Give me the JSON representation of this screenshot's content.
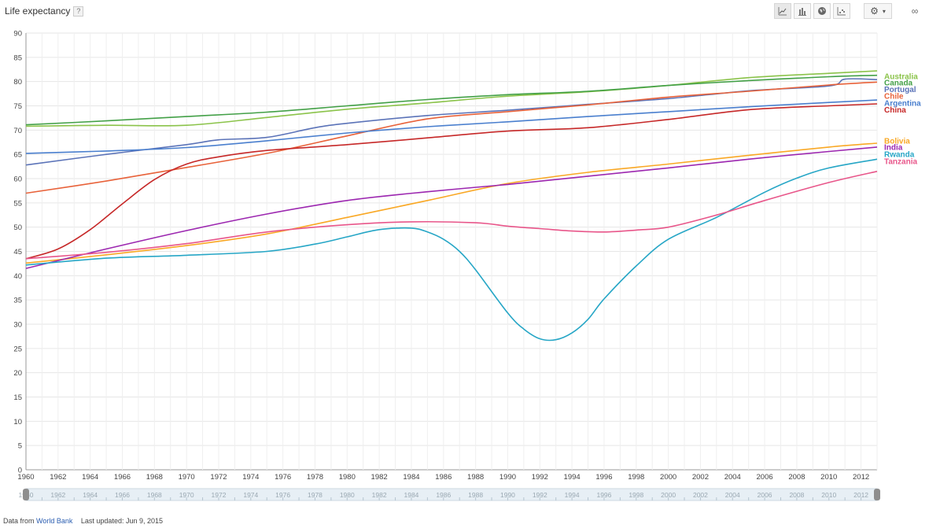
{
  "header": {
    "title": "Life expectancy",
    "help": "?",
    "toolbar": {
      "line_icon": "line-chart-icon",
      "bar_icon": "bar-chart-icon",
      "map_icon": "globe-icon",
      "scatter_icon": "scatter-chart-icon",
      "settings_icon": "gear-icon",
      "settings_caret": "▾",
      "link_icon": "chain-link-icon"
    }
  },
  "footer": {
    "source_prefix": "Data from",
    "source_link": "World Bank",
    "updated": "Last updated: Jun 9, 2015"
  },
  "chart_data": {
    "type": "line",
    "title": "Life expectancy",
    "xlabel": "",
    "ylabel": "",
    "xlim": [
      1960,
      2013
    ],
    "ylim": [
      0,
      90
    ],
    "x_ticks": [
      1960,
      1962,
      1964,
      1966,
      1968,
      1970,
      1972,
      1974,
      1976,
      1978,
      1980,
      1982,
      1984,
      1986,
      1988,
      1990,
      1992,
      1994,
      1996,
      1998,
      2000,
      2002,
      2004,
      2006,
      2008,
      2010,
      2012
    ],
    "y_ticks": [
      0,
      5,
      10,
      15,
      20,
      25,
      30,
      35,
      40,
      45,
      50,
      55,
      60,
      65,
      70,
      75,
      80,
      85,
      90
    ],
    "grid": true,
    "legend_position": "right-end-labels",
    "series": [
      {
        "name": "Australia",
        "color": "#8bc34a",
        "x": [
          1960,
          1965,
          1970,
          1975,
          1980,
          1985,
          1990,
          1995,
          2000,
          2005,
          2010,
          2013
        ],
        "y": [
          70.8,
          71,
          71,
          72.6,
          74.3,
          75.6,
          77,
          77.9,
          79.2,
          80.8,
          81.7,
          82.2
        ]
      },
      {
        "name": "Canada",
        "color": "#43a047",
        "x": [
          1960,
          1965,
          1970,
          1975,
          1980,
          1985,
          1990,
          1995,
          2000,
          2005,
          2010,
          2013
        ],
        "y": [
          71.1,
          71.9,
          72.8,
          73.7,
          75,
          76.3,
          77.3,
          78,
          79.2,
          80.2,
          81,
          81.3
        ]
      },
      {
        "name": "Portugal",
        "color": "#5b73b8",
        "x": [
          1960,
          1965,
          1970,
          1972,
          1975,
          1978,
          1980,
          1985,
          1990,
          1995,
          2000,
          2005,
          2010,
          2011,
          2013
        ],
        "y": [
          62.8,
          65,
          67,
          68,
          68.5,
          70.5,
          71.4,
          73,
          74.1,
          75.3,
          76.5,
          78.1,
          79.1,
          80.5,
          80.4
        ]
      },
      {
        "name": "Chile",
        "color": "#e8623a",
        "x": [
          1960,
          1965,
          1970,
          1975,
          1980,
          1985,
          1990,
          1995,
          2000,
          2005,
          2010,
          2013
        ],
        "y": [
          57,
          59.5,
          62.3,
          65.2,
          68.8,
          72.3,
          73.8,
          75.2,
          76.8,
          78,
          79.3,
          79.9
        ]
      },
      {
        "name": "Argentina",
        "color": "#4a7fce",
        "x": [
          1960,
          1965,
          1970,
          1975,
          1980,
          1985,
          1990,
          1995,
          2000,
          2005,
          2010,
          2013
        ],
        "y": [
          65.2,
          65.7,
          66.4,
          67.8,
          69.4,
          70.7,
          71.7,
          72.8,
          73.8,
          74.8,
          75.7,
          76.2
        ]
      },
      {
        "name": "China",
        "color": "#c62828",
        "x": [
          1960,
          1962,
          1964,
          1966,
          1968,
          1970,
          1972,
          1975,
          1980,
          1985,
          1990,
          1995,
          2000,
          2005,
          2010,
          2013
        ],
        "y": [
          43.5,
          45.5,
          49.5,
          54.8,
          59.8,
          63,
          64.5,
          65.8,
          67,
          68.4,
          69.8,
          70.5,
          72.2,
          74.2,
          75,
          75.4
        ]
      },
      {
        "name": "Bolivia",
        "color": "#f9a825",
        "x": [
          1960,
          1965,
          1970,
          1975,
          1980,
          1985,
          1990,
          1995,
          2000,
          2005,
          2010,
          2013
        ],
        "y": [
          42.6,
          44.3,
          46.2,
          48.6,
          52,
          55.5,
          59,
          61.3,
          63,
          64.8,
          66.5,
          67.3
        ]
      },
      {
        "name": "India",
        "color": "#9c27b0",
        "x": [
          1960,
          1965,
          1970,
          1975,
          1980,
          1985,
          1990,
          1995,
          2000,
          2005,
          2010,
          2013
        ],
        "y": [
          41.5,
          45.5,
          49.3,
          52.7,
          55.5,
          57.3,
          58.8,
          60.5,
          62.2,
          64,
          65.6,
          66.5
        ]
      },
      {
        "name": "Rwanda",
        "color": "#26a6c6",
        "x": [
          1960,
          1965,
          1970,
          1975,
          1978,
          1980,
          1982,
          1984,
          1985,
          1986,
          1987,
          1988,
          1990,
          1991,
          1992,
          1993,
          1994,
          1995,
          1996,
          1998,
          2000,
          2003,
          2006,
          2008,
          2010,
          2013
        ],
        "y": [
          42.2,
          43.6,
          44.2,
          45,
          46.5,
          48,
          49.5,
          49.8,
          49,
          47.5,
          45,
          41.2,
          32.3,
          29,
          27,
          26.8,
          28.2,
          31,
          35.2,
          42,
          47.5,
          52,
          57.2,
          60.1,
          62.2,
          64
        ]
      },
      {
        "name": "Tanzania",
        "color": "#e8568a",
        "x": [
          1960,
          1965,
          1970,
          1975,
          1980,
          1984,
          1988,
          1990,
          1992,
          1994,
          1996,
          1998,
          2000,
          2003,
          2006,
          2010,
          2013
        ],
        "y": [
          43.5,
          44.8,
          46.6,
          49,
          50.5,
          51.1,
          50.9,
          50.2,
          49.7,
          49.2,
          49,
          49.4,
          50,
          52.5,
          55.5,
          59.2,
          61.5
        ]
      }
    ],
    "range_slider": {
      "start": 1960,
      "end": 2013
    }
  }
}
